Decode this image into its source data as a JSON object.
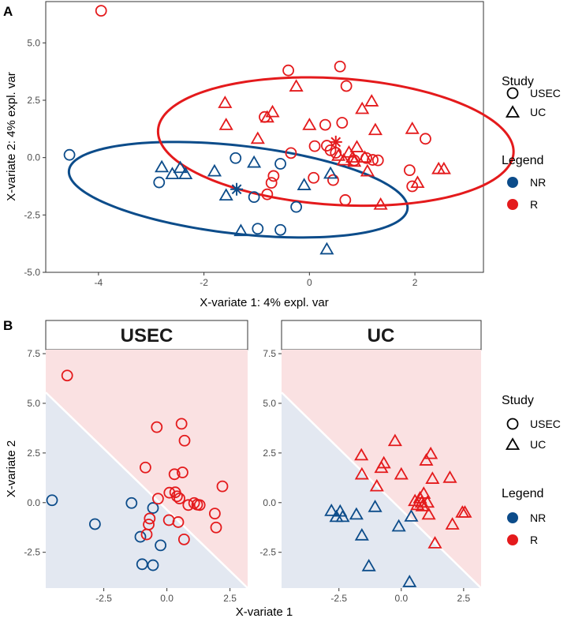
{
  "panels": [
    {
      "id": "A",
      "letter": "A",
      "xlabel": "X-variate 1: 4% expl. var",
      "ylabel": "X-variate 2: 4% expl. var"
    },
    {
      "id": "B",
      "letter": "B",
      "xlabel": "X-variate 1",
      "ylabel": "X-variate 2"
    }
  ],
  "legends": {
    "study_title": "Study",
    "study_items": [
      {
        "label": "USEC",
        "shape": "circle"
      },
      {
        "label": "UC",
        "shape": "triangle"
      }
    ],
    "legend_title": "Legend",
    "legend_items": [
      {
        "label": "NR",
        "color": "#0C4C8A"
      },
      {
        "label": "R",
        "color": "#E41A1C"
      }
    ]
  },
  "colors": {
    "NR": "#0C4C8A",
    "R": "#E41A1C",
    "nr_region": "#E3E8F1",
    "r_region": "#FAE1E2",
    "strip_bg": "#ffffff"
  },
  "chart_data": [
    {
      "type": "scatter",
      "title": "",
      "xlabel": "X-variate 1: 4% expl. var",
      "ylabel": "X-variate 2: 4% expl. var",
      "xlim": [
        -5.0,
        3.3
      ],
      "ylim": [
        -5.0,
        6.8
      ],
      "xticks": [
        -4,
        -2,
        0,
        2
      ],
      "xtick_labels": [
        "-4",
        "-2",
        "0",
        "2"
      ],
      "yticks": [
        -5.0,
        -2.5,
        0.0,
        2.5,
        5.0
      ],
      "ytick_labels": [
        "-5.0",
        "-2.5",
        "0.0",
        "2.5",
        "5.0"
      ],
      "ellipses": [
        {
          "group": "NR",
          "cx": -1.35,
          "cy": -1.4,
          "a": 3.35,
          "b": 1.85,
          "angle_deg": -20
        },
        {
          "group": "R",
          "cx": 0.5,
          "cy": 0.7,
          "a": 3.45,
          "b": 2.7,
          "angle_deg": -20
        }
      ],
      "centroids": [
        {
          "group": "NR",
          "x": -1.38,
          "y": -1.38
        },
        {
          "group": "R",
          "x": 0.5,
          "y": 0.68
        }
      ],
      "series": [
        {
          "name": "USEC NR",
          "study": "USEC",
          "group": "NR",
          "points": [
            [
              -4.55,
              0.12
            ],
            [
              -2.85,
              -1.08
            ],
            [
              -1.4,
              -0.02
            ],
            [
              -1.05,
              -1.72
            ],
            [
              -0.55,
              -0.27
            ],
            [
              -0.25,
              -2.15
            ],
            [
              -0.98,
              -3.1
            ],
            [
              -0.55,
              -3.15
            ]
          ]
        },
        {
          "name": "USEC R",
          "study": "USEC",
          "group": "R",
          "points": [
            [
              -3.95,
              6.4
            ],
            [
              -0.85,
              1.77
            ],
            [
              -0.4,
              3.8
            ],
            [
              0.58,
              3.97
            ],
            [
              0.7,
              3.12
            ],
            [
              0.3,
              1.43
            ],
            [
              0.62,
              1.52
            ],
            [
              0.33,
              0.52
            ],
            [
              0.1,
              0.5
            ],
            [
              0.4,
              0.32
            ],
            [
              -0.72,
              -1.1
            ],
            [
              0.5,
              0.21
            ],
            [
              -0.8,
              -1.6
            ],
            [
              -0.68,
              -0.8
            ],
            [
              -0.35,
              0.2
            ],
            [
              0.08,
              -0.88
            ],
            [
              0.45,
              -0.98
            ],
            [
              1.08,
              -0.02
            ],
            [
              1.2,
              -0.1
            ],
            [
              1.3,
              -0.12
            ],
            [
              0.85,
              -0.12
            ],
            [
              2.2,
              0.82
            ],
            [
              1.9,
              -0.55
            ],
            [
              1.95,
              -1.25
            ],
            [
              0.68,
              -1.85
            ]
          ]
        },
        {
          "name": "UC NR",
          "study": "UC",
          "group": "NR",
          "points": [
            [
              -2.8,
              -0.42
            ],
            [
              -2.6,
              -0.72
            ],
            [
              -2.45,
              -0.45
            ],
            [
              -2.35,
              -0.72
            ],
            [
              -1.8,
              -0.6
            ],
            [
              -1.58,
              -1.65
            ],
            [
              -1.3,
              -3.2
            ],
            [
              -1.05,
              -0.22
            ],
            [
              -0.1,
              -1.2
            ],
            [
              0.4,
              -0.7
            ],
            [
              0.33,
              -4.0
            ]
          ]
        },
        {
          "name": "UC R",
          "study": "UC",
          "group": "R",
          "points": [
            [
              -1.6,
              2.38
            ],
            [
              -1.58,
              1.42
            ],
            [
              -0.8,
              1.75
            ],
            [
              -0.98,
              0.82
            ],
            [
              -0.7,
              1.98
            ],
            [
              -0.25,
              3.1
            ],
            [
              0.0,
              1.42
            ],
            [
              0.55,
              0.08
            ],
            [
              0.65,
              -0.12
            ],
            [
              0.75,
              0.22
            ],
            [
              0.82,
              0.0
            ],
            [
              0.85,
              -0.18
            ],
            [
              0.9,
              0.45
            ],
            [
              1.0,
              2.12
            ],
            [
              1.05,
              0.0
            ],
            [
              1.1,
              -0.6
            ],
            [
              1.18,
              2.45
            ],
            [
              1.25,
              1.2
            ],
            [
              1.35,
              -2.05
            ],
            [
              1.95,
              1.25
            ],
            [
              2.05,
              -1.1
            ],
            [
              2.45,
              -0.5
            ],
            [
              2.55,
              -0.5
            ]
          ]
        }
      ]
    },
    {
      "type": "scatter",
      "title": "USEC",
      "xlabel": "X-variate 1",
      "ylabel": "X-variate 2",
      "xlim": [
        -4.8,
        3.2
      ],
      "ylim": [
        -4.3,
        7.7
      ],
      "xticks": [
        -2.5,
        0.0,
        2.5
      ],
      "xtick_labels": [
        "-2.5",
        "0.0",
        "2.5"
      ],
      "yticks": [
        -2.5,
        0.0,
        2.5,
        5.0,
        7.5
      ],
      "ytick_labels": [
        "-2.5",
        "0.0",
        "2.5",
        "5.0",
        "7.5"
      ],
      "decision_boundary": [
        [
          -4.8,
          5.55
        ],
        [
          3.2,
          -4.3
        ]
      ],
      "series": [
        {
          "name": "NR",
          "study": "USEC",
          "group": "NR",
          "points": [
            [
              -4.55,
              0.12
            ],
            [
              -2.85,
              -1.08
            ],
            [
              -1.4,
              -0.02
            ],
            [
              -1.05,
              -1.72
            ],
            [
              -0.55,
              -0.27
            ],
            [
              -0.25,
              -2.15
            ],
            [
              -0.98,
              -3.1
            ],
            [
              -0.55,
              -3.15
            ]
          ]
        },
        {
          "name": "R",
          "study": "USEC",
          "group": "R",
          "points": [
            [
              -3.95,
              6.4
            ],
            [
              -0.85,
              1.77
            ],
            [
              -0.4,
              3.8
            ],
            [
              0.58,
              3.97
            ],
            [
              0.7,
              3.12
            ],
            [
              0.3,
              1.43
            ],
            [
              0.62,
              1.52
            ],
            [
              0.33,
              0.52
            ],
            [
              0.1,
              0.5
            ],
            [
              0.4,
              0.32
            ],
            [
              -0.72,
              -1.1
            ],
            [
              0.5,
              0.21
            ],
            [
              -0.8,
              -1.6
            ],
            [
              -0.68,
              -0.8
            ],
            [
              -0.35,
              0.2
            ],
            [
              0.08,
              -0.88
            ],
            [
              0.45,
              -0.98
            ],
            [
              1.08,
              -0.02
            ],
            [
              1.2,
              -0.1
            ],
            [
              1.3,
              -0.12
            ],
            [
              0.85,
              -0.12
            ],
            [
              2.2,
              0.82
            ],
            [
              1.9,
              -0.55
            ],
            [
              1.95,
              -1.25
            ],
            [
              0.68,
              -1.85
            ]
          ]
        }
      ]
    },
    {
      "type": "scatter",
      "title": "UC",
      "xlabel": "X-variate 1",
      "ylabel": "X-variate 2",
      "xlim": [
        -4.8,
        3.2
      ],
      "ylim": [
        -4.3,
        7.7
      ],
      "xticks": [
        -2.5,
        0.0,
        2.5
      ],
      "xtick_labels": [
        "-2.5",
        "0.0",
        "2.5"
      ],
      "yticks": [
        -2.5,
        0.0,
        2.5,
        5.0,
        7.5
      ],
      "ytick_labels": [
        "-2.5",
        "0.0",
        "2.5",
        "5.0",
        "7.5"
      ],
      "decision_boundary": [
        [
          -4.8,
          5.55
        ],
        [
          3.2,
          -4.3
        ]
      ],
      "series": [
        {
          "name": "NR",
          "study": "UC",
          "group": "NR",
          "points": [
            [
              -2.8,
              -0.42
            ],
            [
              -2.6,
              -0.72
            ],
            [
              -2.45,
              -0.45
            ],
            [
              -2.35,
              -0.72
            ],
            [
              -1.8,
              -0.6
            ],
            [
              -1.58,
              -1.65
            ],
            [
              -1.3,
              -3.2
            ],
            [
              -1.05,
              -0.22
            ],
            [
              -0.1,
              -1.2
            ],
            [
              0.4,
              -0.7
            ],
            [
              0.33,
              -4.0
            ]
          ]
        },
        {
          "name": "R",
          "study": "UC",
          "group": "R",
          "points": [
            [
              -1.6,
              2.38
            ],
            [
              -1.58,
              1.42
            ],
            [
              -0.8,
              1.75
            ],
            [
              -0.98,
              0.82
            ],
            [
              -0.7,
              1.98
            ],
            [
              -0.25,
              3.1
            ],
            [
              0.0,
              1.42
            ],
            [
              0.55,
              0.08
            ],
            [
              0.65,
              -0.12
            ],
            [
              0.75,
              0.22
            ],
            [
              0.82,
              0.0
            ],
            [
              0.85,
              -0.18
            ],
            [
              0.9,
              0.45
            ],
            [
              1.0,
              2.12
            ],
            [
              1.05,
              0.0
            ],
            [
              1.1,
              -0.6
            ],
            [
              1.18,
              2.45
            ],
            [
              1.25,
              1.2
            ],
            [
              1.35,
              -2.05
            ],
            [
              1.95,
              1.25
            ],
            [
              2.05,
              -1.1
            ],
            [
              2.45,
              -0.5
            ],
            [
              2.55,
              -0.5
            ]
          ]
        }
      ]
    }
  ]
}
